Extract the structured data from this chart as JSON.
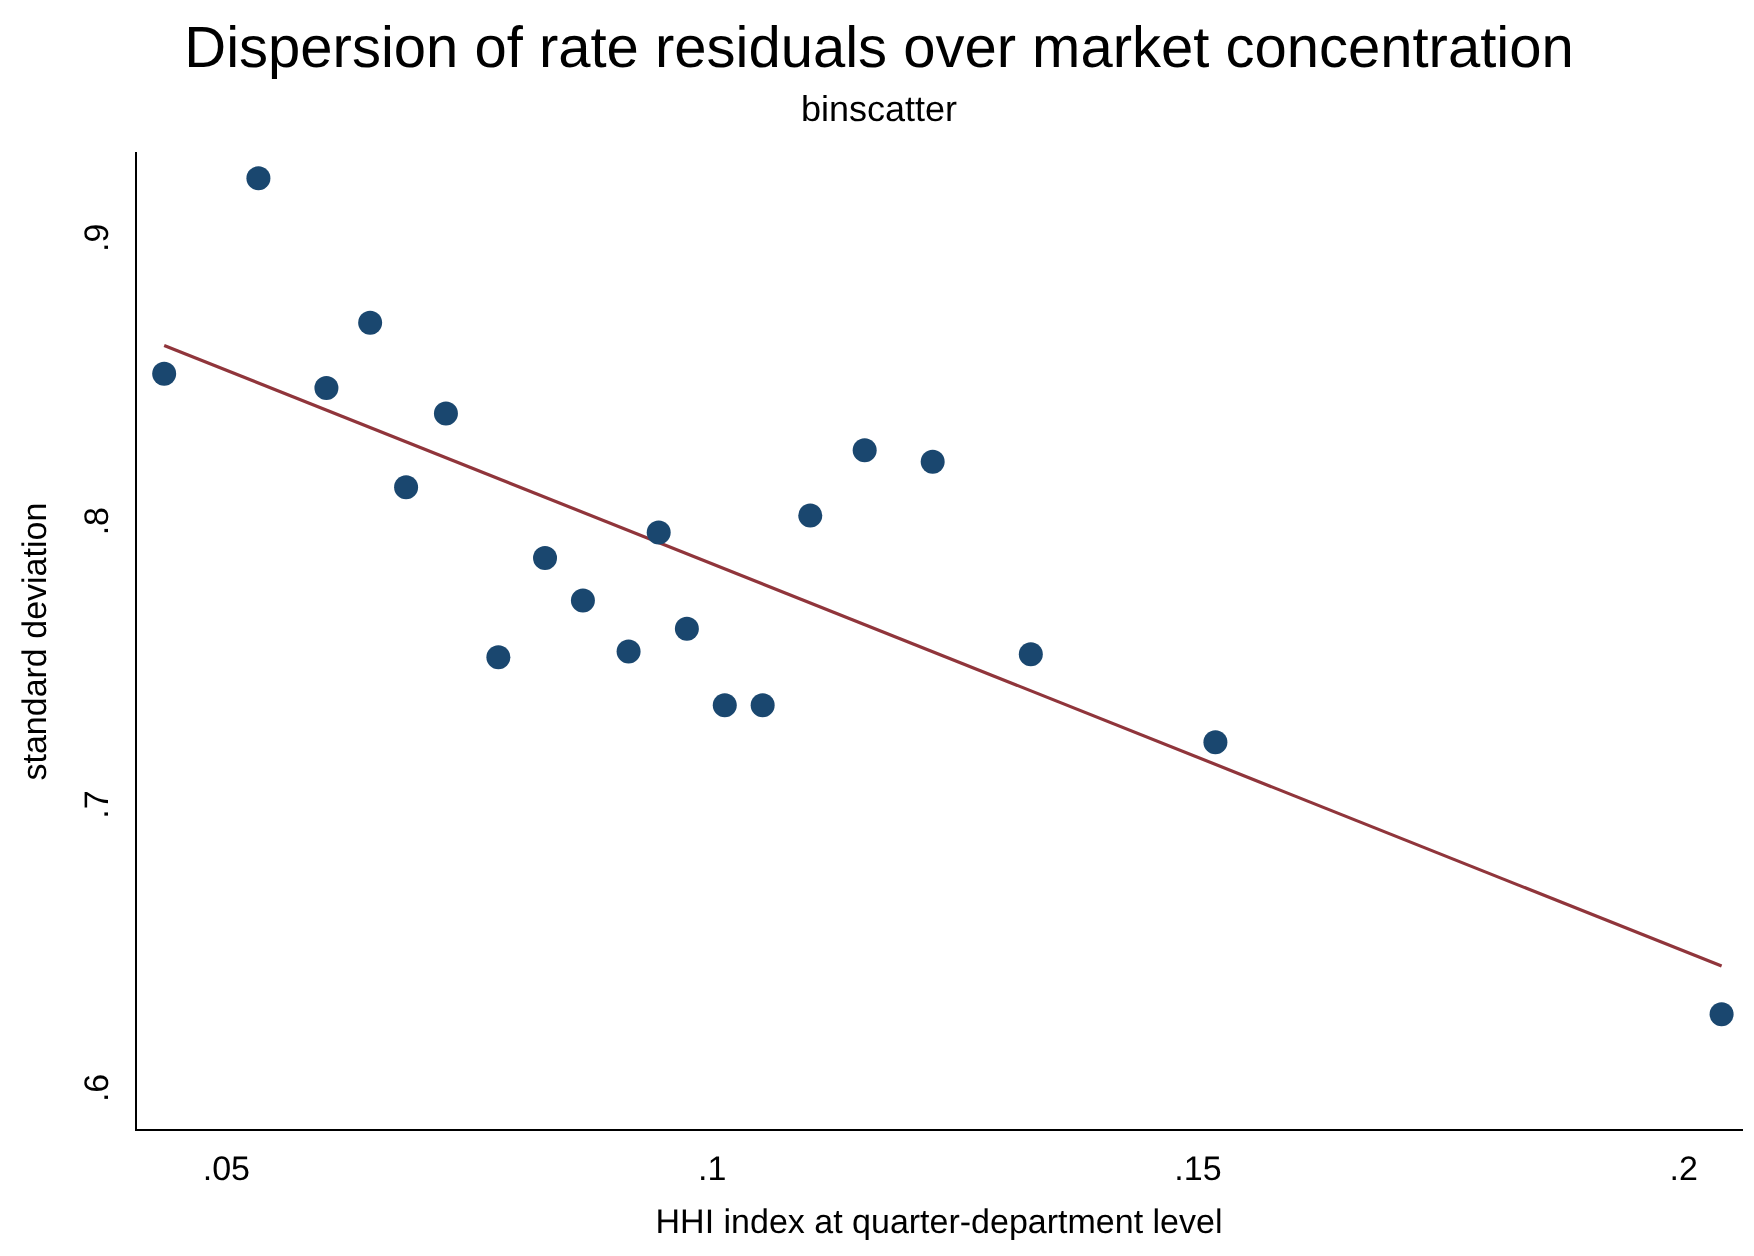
{
  "chart_data": {
    "type": "scatter",
    "title": "Dispersion of rate residuals over market concentration",
    "subtitle": "binscatter",
    "xlabel": "HHI index at quarter-department level",
    "ylabel": "standard deviation",
    "xlim": [
      0.0407,
      0.206
    ],
    "xticks": [
      {
        "value": 0.05,
        "label": ".05"
      },
      {
        "value": 0.1,
        "label": ".1"
      },
      {
        "value": 0.15,
        "label": ".15"
      },
      {
        "value": 0.2,
        "label": ".2"
      }
    ],
    "ylim": [
      0.585,
      0.93
    ],
    "yticks": [
      {
        "value": 0.6,
        "label": ".6"
      },
      {
        "value": 0.7,
        "label": ".7"
      },
      {
        "value": 0.8,
        "label": ".8"
      },
      {
        "value": 0.9,
        "label": ".9"
      }
    ],
    "grid": false,
    "legend": false,
    "marker": "circle",
    "series": [
      {
        "type": "scatter",
        "color": "#1a476f",
        "x": [
          0.0436,
          0.0533,
          0.0603,
          0.0648,
          0.0685,
          0.0726,
          0.078,
          0.0828,
          0.0867,
          0.0914,
          0.0945,
          0.0974,
          0.1013,
          0.1052,
          0.1101,
          0.1157,
          0.1227,
          0.1328,
          0.1518,
          0.2039
        ],
        "values": [
          0.852,
          0.921,
          0.847,
          0.87,
          0.812,
          0.838,
          0.752,
          0.787,
          0.772,
          0.754,
          0.796,
          0.762,
          0.735,
          0.735,
          0.802,
          0.825,
          0.821,
          0.753,
          0.722,
          0.626
        ]
      },
      {
        "type": "line",
        "color": "#90353b",
        "line_style": "solid",
        "marker": "none",
        "x": [
          0.0436,
          0.2039
        ],
        "values": [
          0.862,
          0.643
        ]
      }
    ]
  }
}
